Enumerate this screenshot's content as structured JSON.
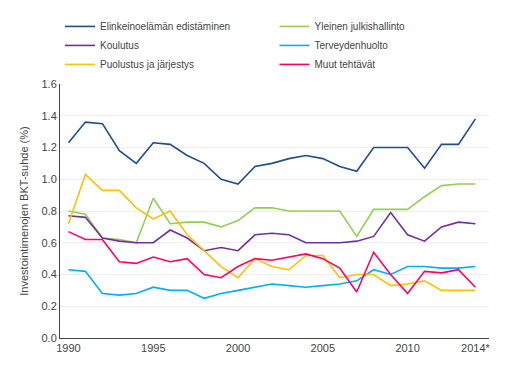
{
  "chart_data": {
    "type": "line",
    "x": [
      1990,
      1991,
      1992,
      1993,
      1994,
      1995,
      1996,
      1997,
      1998,
      1999,
      2000,
      2001,
      2002,
      2003,
      2004,
      2005,
      2006,
      2007,
      2008,
      2009,
      2010,
      2011,
      2012,
      2013,
      2014
    ],
    "series": [
      {
        "name": "Elinkeinoelämän edistäminen",
        "color": "#1f4e8c",
        "values": [
          1.23,
          1.36,
          1.35,
          1.18,
          1.1,
          1.23,
          1.22,
          1.15,
          1.1,
          1.0,
          0.97,
          1.08,
          1.1,
          1.13,
          1.15,
          1.13,
          1.08,
          1.05,
          1.2,
          1.2,
          1.2,
          1.07,
          1.22,
          1.22,
          1.38
        ]
      },
      {
        "name": "Yleinen julkishallinto",
        "color": "#92d050",
        "values": [
          0.8,
          0.78,
          0.63,
          0.62,
          0.6,
          0.88,
          0.72,
          0.73,
          0.73,
          0.7,
          0.74,
          0.82,
          0.82,
          0.8,
          0.8,
          0.8,
          0.8,
          0.64,
          0.81,
          0.81,
          0.81,
          0.89,
          0.96,
          0.97,
          0.97
        ]
      },
      {
        "name": "Koulutus",
        "color": "#7030a0",
        "values": [
          0.77,
          0.76,
          0.63,
          0.61,
          0.6,
          0.6,
          0.68,
          0.63,
          0.55,
          0.57,
          0.55,
          0.65,
          0.66,
          0.65,
          0.6,
          0.6,
          0.6,
          0.61,
          0.64,
          0.79,
          0.65,
          0.61,
          0.7,
          0.73,
          0.72
        ]
      },
      {
        "name": "Terveydenhuolto",
        "color": "#00b0f0",
        "values": [
          0.43,
          0.42,
          0.28,
          0.27,
          0.28,
          0.32,
          0.3,
          0.3,
          0.25,
          0.28,
          0.3,
          0.32,
          0.34,
          0.33,
          0.32,
          0.33,
          0.34,
          0.36,
          0.43,
          0.4,
          0.45,
          0.45,
          0.44,
          0.44,
          0.45
        ]
      },
      {
        "name": "Puolustus ja järjestys",
        "color": "#ffc000",
        "values": [
          0.72,
          1.03,
          0.93,
          0.93,
          0.82,
          0.75,
          0.8,
          0.65,
          0.55,
          0.45,
          0.38,
          0.5,
          0.45,
          0.43,
          0.52,
          0.52,
          0.38,
          0.4,
          0.4,
          0.33,
          0.34,
          0.36,
          0.3,
          0.3,
          0.3
        ]
      },
      {
        "name": "Muut tehtävät",
        "color": "#ff0066",
        "values": [
          0.67,
          0.62,
          0.62,
          0.48,
          0.47,
          0.51,
          0.48,
          0.5,
          0.4,
          0.38,
          0.45,
          0.5,
          0.49,
          0.51,
          0.53,
          0.5,
          0.44,
          0.29,
          0.54,
          0.4,
          0.28,
          0.42,
          0.41,
          0.43,
          0.32
        ]
      }
    ],
    "ylabel": "Investointimenojen BKT-suhde (%)",
    "xlim": [
      1989.5,
      2014.8
    ],
    "xticks": [
      1990,
      1995,
      2000,
      2005,
      2010,
      {
        "value": 2014,
        "label": "2014*"
      }
    ],
    "ylim": [
      0.0,
      1.6
    ],
    "yticks": [
      {
        "value": 0,
        "label": "0.0"
      },
      0.2,
      0.4,
      0.6,
      0.8,
      {
        "value": 1,
        "label": "1.0"
      },
      1.2,
      1.4,
      1.6
    ],
    "grid": "y",
    "legend": "top"
  }
}
